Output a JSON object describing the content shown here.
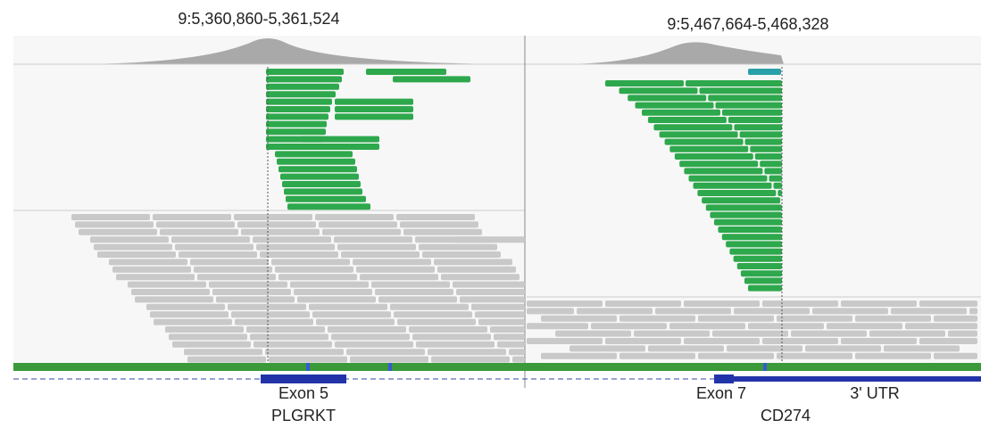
{
  "panels": [
    {
      "locus": "9:5,360,860-5,361,524",
      "labels": [
        "Exon 5"
      ],
      "gene": "PLGRKT"
    },
    {
      "locus": "9:5,467,664-5,468,328",
      "labels": [
        "Exon 7",
        "3' UTR"
      ],
      "gene": "CD274"
    }
  ]
}
